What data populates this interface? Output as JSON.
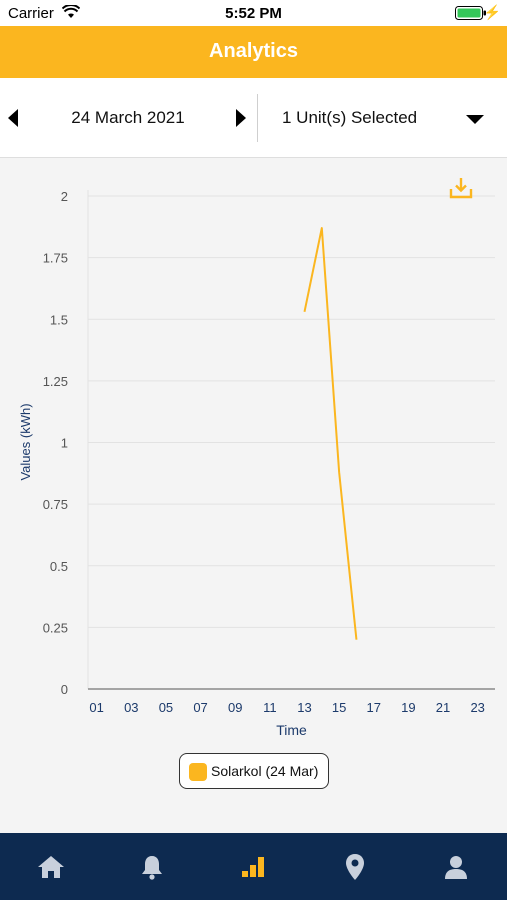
{
  "status_bar": {
    "carrier": "Carrier",
    "time": "5:52 PM"
  },
  "header": {
    "title": "Analytics"
  },
  "toolbar": {
    "date": "24 March 2021",
    "units_selected": "1 Unit(s) Selected"
  },
  "colors": {
    "accent": "#fbb61f",
    "tabbar_bg": "#0d2a50",
    "axis_text": "#1c3a6b"
  },
  "tabs": [
    {
      "name": "home-icon",
      "active": false
    },
    {
      "name": "bell-icon",
      "active": false
    },
    {
      "name": "analytics-icon",
      "active": true
    },
    {
      "name": "location-pin-icon",
      "active": false
    },
    {
      "name": "user-icon",
      "active": false
    }
  ],
  "chart_data": {
    "type": "line",
    "xlabel": "Time",
    "ylabel": "Values (kWh)",
    "ylim": [
      0,
      2
    ],
    "yticks": [
      0,
      0.25,
      0.5,
      0.75,
      1,
      1.25,
      1.5,
      1.75,
      2
    ],
    "ytick_labels": [
      "0",
      "0.25",
      "0.5",
      "0.75",
      "1",
      "1.25",
      "1.5",
      "1.75",
      "2"
    ],
    "xlim": [
      0.5,
      24
    ],
    "xtick_labels": [
      "01",
      "03",
      "05",
      "07",
      "09",
      "11",
      "13",
      "15",
      "17",
      "19",
      "21",
      "23"
    ],
    "xtick_values": [
      1,
      3,
      5,
      7,
      9,
      11,
      13,
      15,
      17,
      19,
      21,
      23
    ],
    "grid": true,
    "legend_position": "bottom-center",
    "series": [
      {
        "name": "Solarkol (24 Mar)",
        "color": "#fbb61f",
        "x": [
          13,
          14,
          15,
          16
        ],
        "y": [
          1.53,
          1.87,
          0.88,
          0.2
        ]
      }
    ]
  }
}
